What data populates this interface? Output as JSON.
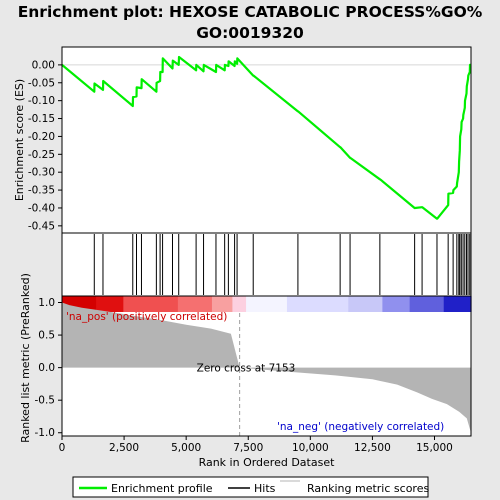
{
  "chart_data": {
    "type": "line",
    "title_line1": "Enrichment plot: HEXOSE CATABOLIC PROCESS%GO%",
    "title_line2": "GO:0019320",
    "top_panel": {
      "ylabel": "Enrichment score (ES)",
      "ylim": [
        -0.47,
        0.05
      ],
      "yticks": [
        0.0,
        -0.05,
        -0.1,
        -0.15,
        -0.2,
        -0.25,
        -0.3,
        -0.35,
        -0.4,
        -0.45
      ],
      "ytick_labels": [
        "0.00",
        "-0.05",
        "-0.10",
        "-0.15",
        "-0.20",
        "-0.25",
        "-0.30",
        "-0.35",
        "-0.40",
        "-0.45"
      ],
      "series_name": "Enrichment profile",
      "color": "#00ee00",
      "x": [
        0,
        1300,
        1310,
        1650,
        1660,
        2850,
        2860,
        3000,
        3010,
        3200,
        3210,
        3800,
        3810,
        3950,
        3960,
        4050,
        4060,
        4450,
        4460,
        4700,
        4710,
        5400,
        5410,
        5700,
        5710,
        6200,
        6210,
        6550,
        6560,
        6700,
        6710,
        6950,
        6960,
        7050,
        7060,
        7700,
        7710,
        9500,
        9510,
        11200,
        11210,
        11600,
        11610,
        12800,
        12810,
        14200,
        14210,
        14500,
        14510,
        15100,
        15110,
        15550,
        15560,
        15750,
        15760,
        15900,
        15910,
        15980,
        15990,
        16020,
        16030,
        16080,
        16090,
        16150,
        16160,
        16220,
        16230,
        16290,
        16300,
        16350,
        16360,
        16420,
        16430,
        16470
      ],
      "y": [
        0.0,
        -0.075,
        -0.052,
        -0.07,
        -0.045,
        -0.115,
        -0.09,
        -0.088,
        -0.063,
        -0.065,
        -0.04,
        -0.075,
        -0.05,
        -0.045,
        -0.02,
        -0.02,
        0.018,
        -0.01,
        0.012,
        0.0,
        0.022,
        -0.015,
        0.0,
        -0.018,
        0.0,
        -0.02,
        0.0,
        -0.015,
        0.0,
        -0.003,
        0.01,
        -0.003,
        0.01,
        0.003,
        0.018,
        -0.03,
        -0.03,
        -0.13,
        -0.13,
        -0.23,
        -0.23,
        -0.26,
        -0.26,
        -0.32,
        -0.32,
        -0.4,
        -0.4,
        -0.398,
        -0.398,
        -0.43,
        -0.43,
        -0.392,
        -0.36,
        -0.358,
        -0.35,
        -0.34,
        -0.33,
        -0.3,
        -0.27,
        -0.24,
        -0.2,
        -0.18,
        -0.16,
        -0.15,
        -0.14,
        -0.12,
        -0.1,
        -0.08,
        -0.06,
        -0.04,
        -0.03,
        -0.02,
        0.0,
        0.0
      ]
    },
    "hits": [
      1300,
      1650,
      2850,
      3000,
      3200,
      3800,
      3950,
      4050,
      4450,
      4700,
      5400,
      5700,
      6200,
      6550,
      6700,
      6950,
      7050,
      7700,
      9500,
      11200,
      11600,
      12800,
      14200,
      14500,
      15100,
      15550,
      15750,
      15900,
      15980,
      16020,
      16080,
      16150,
      16220,
      16290,
      16350,
      16420
    ],
    "bottom_panel": {
      "ylabel": "Ranked list metric (PreRanked)",
      "ylim": [
        -1.05,
        1.1
      ],
      "yticks": [
        1.0,
        0.5,
        0.0,
        -0.5,
        -1.0
      ],
      "ytick_labels": [
        "1.0",
        "0.5",
        "0.0",
        "-0.5",
        "-1.0"
      ],
      "metric_x": [
        0,
        300,
        800,
        1500,
        2200,
        3000,
        4000,
        5000,
        6000,
        6800,
        7153,
        9000,
        11000,
        12500,
        13500,
        14300,
        14900,
        15500,
        16000,
        16300,
        16470
      ],
      "metric_y": [
        1.0,
        0.96,
        0.92,
        0.88,
        0.84,
        0.79,
        0.73,
        0.66,
        0.6,
        0.52,
        0.0,
        -0.06,
        -0.12,
        -0.18,
        -0.26,
        -0.38,
        -0.48,
        -0.56,
        -0.68,
        -0.78,
        -1.0
      ],
      "zero_cross_label": "Zero cross at 7153",
      "zero_cross": 7153,
      "pos_label": "'na_pos' (positively correlated)",
      "neg_label": "'na_neg' (negatively correlated)"
    },
    "xlabel": "Rank in Ordered Dataset",
    "xlim": [
      0,
      16470
    ],
    "xticks": [
      0,
      2500,
      5000,
      7500,
      10000,
      12500,
      15000
    ],
    "xtick_labels": [
      "0",
      "2,500",
      "5,000",
      "7,500",
      "10,000",
      "12,500",
      "15,000"
    ],
    "legend": {
      "placement": "bottom",
      "entries": [
        "Enrichment profile",
        "Hits",
        "Ranking metric scores"
      ]
    }
  }
}
